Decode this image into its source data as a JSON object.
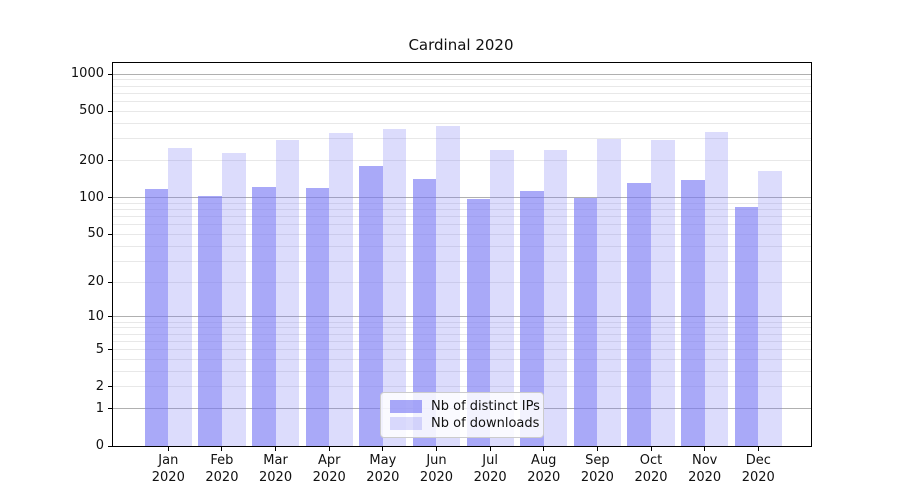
{
  "title": "Cardinal 2020",
  "colors": {
    "bar_base": "#7979f4",
    "ips_alpha": 0.64,
    "downloads_alpha": 0.26,
    "major_grid": "#b0b0b0",
    "minor_grid": "#e8e8e8",
    "axis": "#000000"
  },
  "legend": {
    "items": [
      {
        "label": "Nb of distinct IPs",
        "series": 0
      },
      {
        "label": "Nb of downloads",
        "series": 1
      }
    ]
  },
  "chart_data": {
    "type": "bar",
    "title": "Cardinal 2020",
    "categories": [
      "Jan 2020",
      "Feb 2020",
      "Mar 2020",
      "Apr 2020",
      "May 2020",
      "Jun 2020",
      "Jul 2020",
      "Aug 2020",
      "Sep 2020",
      "Oct 2020",
      "Nov 2020",
      "Dec 2020"
    ],
    "series": [
      {
        "name": "Nb of distinct IPs",
        "values": [
          117,
          103,
          122,
          119,
          180,
          143,
          98,
          114,
          100,
          132,
          138,
          84
        ]
      },
      {
        "name": "Nb of downloads",
        "values": [
          252,
          231,
          293,
          332,
          363,
          382,
          243,
          243,
          302,
          292,
          344,
          166
        ]
      }
    ],
    "xlabel": "",
    "ylabel": "",
    "yscale": "log1p",
    "yticks": [
      0,
      1,
      2,
      5,
      10,
      20,
      50,
      100,
      200,
      500,
      1000
    ],
    "ylim": [
      0,
      1230
    ],
    "grid": true,
    "legend_position": "lower center"
  }
}
